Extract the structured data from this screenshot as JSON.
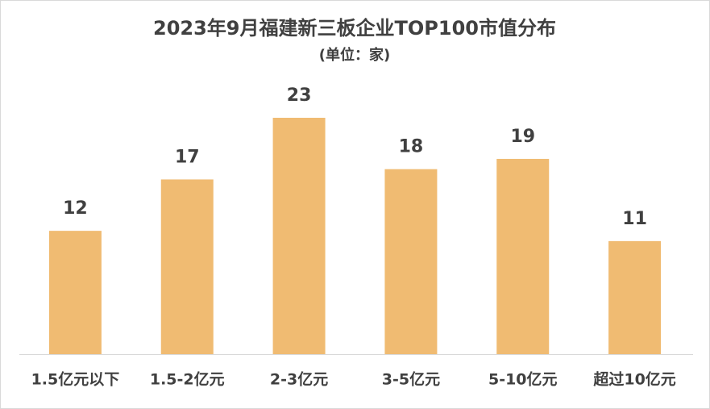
{
  "chart_data": {
    "type": "bar",
    "title": "2023年9月福建新三板企业TOP100市值分布",
    "subtitle": "(单位：家)",
    "categories": [
      "1.5亿元以下",
      "1.5-2亿元",
      "2-3亿元",
      "3-5亿元",
      "5-10亿元",
      "超过10亿元"
    ],
    "values": [
      12,
      17,
      23,
      18,
      19,
      11
    ],
    "color": "#f0bb72"
  }
}
